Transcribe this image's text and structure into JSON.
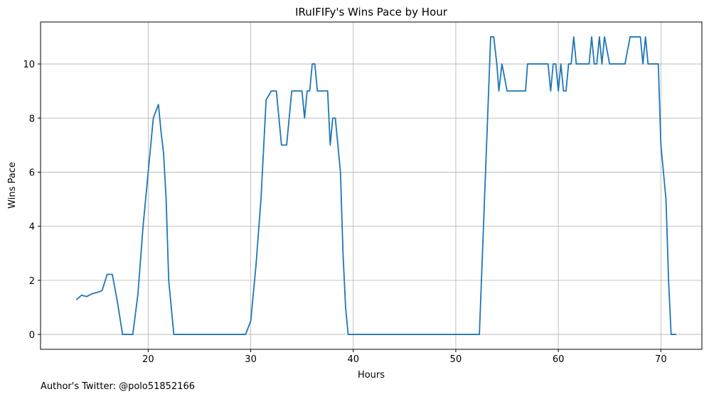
{
  "chart_data": {
    "type": "line",
    "title": "IRuIFIFy's Wins Pace by Hour",
    "xlabel": "Hours",
    "ylabel": "Wins Pace",
    "xlim": [
      9.5,
      74.0
    ],
    "ylim": [
      -0.55,
      11.55
    ],
    "xticks": [
      20,
      30,
      40,
      50,
      60,
      70
    ],
    "yticks": [
      0,
      2,
      4,
      6,
      8,
      10
    ],
    "grid": true,
    "series": [
      {
        "name": "Wins Pace",
        "color": "#1f77b4",
        "x": [
          13.0,
          13.5,
          14.0,
          14.5,
          15.0,
          15.5,
          16.0,
          16.5,
          17.0,
          17.5,
          18.0,
          18.5,
          19.0,
          19.5,
          20.0,
          20.5,
          21.0,
          21.25,
          21.5,
          21.75,
          22.0,
          22.5,
          23.0,
          24.0,
          25.0,
          26.0,
          27.0,
          28.0,
          29.0,
          29.5,
          30.0,
          30.5,
          31.0,
          31.5,
          32.0,
          32.5,
          33.0,
          33.5,
          34.0,
          34.5,
          35.0,
          35.25,
          35.5,
          35.75,
          36.0,
          36.25,
          36.5,
          37.0,
          37.5,
          37.75,
          38.0,
          38.25,
          38.5,
          38.75,
          39.0,
          39.25,
          39.5,
          40.0,
          42.0,
          44.0,
          46.0,
          48.0,
          50.0,
          52.0,
          52.3,
          52.8,
          53.2,
          53.4,
          53.7,
          54.0,
          54.2,
          54.5,
          55.0,
          55.5,
          56.0,
          56.5,
          56.8,
          57.0,
          57.5,
          58.0,
          58.5,
          59.0,
          59.25,
          59.5,
          59.75,
          60.0,
          60.25,
          60.5,
          60.75,
          61.0,
          61.25,
          61.5,
          61.75,
          62.0,
          62.5,
          63.0,
          63.25,
          63.5,
          63.75,
          64.0,
          64.25,
          64.5,
          65.0,
          65.5,
          66.0,
          66.5,
          67.0,
          67.5,
          68.0,
          68.25,
          68.5,
          68.75,
          69.0,
          69.5,
          69.75,
          70.0,
          70.5,
          70.75,
          71.0,
          71.5
        ],
        "y": [
          1.28,
          1.45,
          1.4,
          1.5,
          1.55,
          1.62,
          2.22,
          2.22,
          1.2,
          0,
          0,
          0,
          1.5,
          4.0,
          6.0,
          8.0,
          8.5,
          7.5,
          6.7,
          5.0,
          2.0,
          0,
          0,
          0,
          0,
          0,
          0,
          0,
          0,
          0,
          0.5,
          2.5,
          5.0,
          8.67,
          9.0,
          9.0,
          7.0,
          7.0,
          9.0,
          9.0,
          9.0,
          8.0,
          9.0,
          9.0,
          10.0,
          10.0,
          9.0,
          9.0,
          9.0,
          7.0,
          8.0,
          8.0,
          7.0,
          6.0,
          3.0,
          1.0,
          0,
          0,
          0,
          0,
          0,
          0,
          0,
          0,
          0,
          5.0,
          9.0,
          11.0,
          11.0,
          10.0,
          9.0,
          10.0,
          9.0,
          9.0,
          9.0,
          9.0,
          9.0,
          10.0,
          10.0,
          10.0,
          10.0,
          10.0,
          9.0,
          10.0,
          10.0,
          9.0,
          10.0,
          9.0,
          9.0,
          10.0,
          10.0,
          11.0,
          10.0,
          10.0,
          10.0,
          10.0,
          11.0,
          10.0,
          10.0,
          11.0,
          10.0,
          11.0,
          10.0,
          10.0,
          10.0,
          10.0,
          11.0,
          11.0,
          11.0,
          10.0,
          11.0,
          10.0,
          10.0,
          10.0,
          10.0,
          7.0,
          5.0,
          2.0,
          0,
          0
        ]
      }
    ]
  },
  "footnote": "Author's Twitter: @polo51852166"
}
